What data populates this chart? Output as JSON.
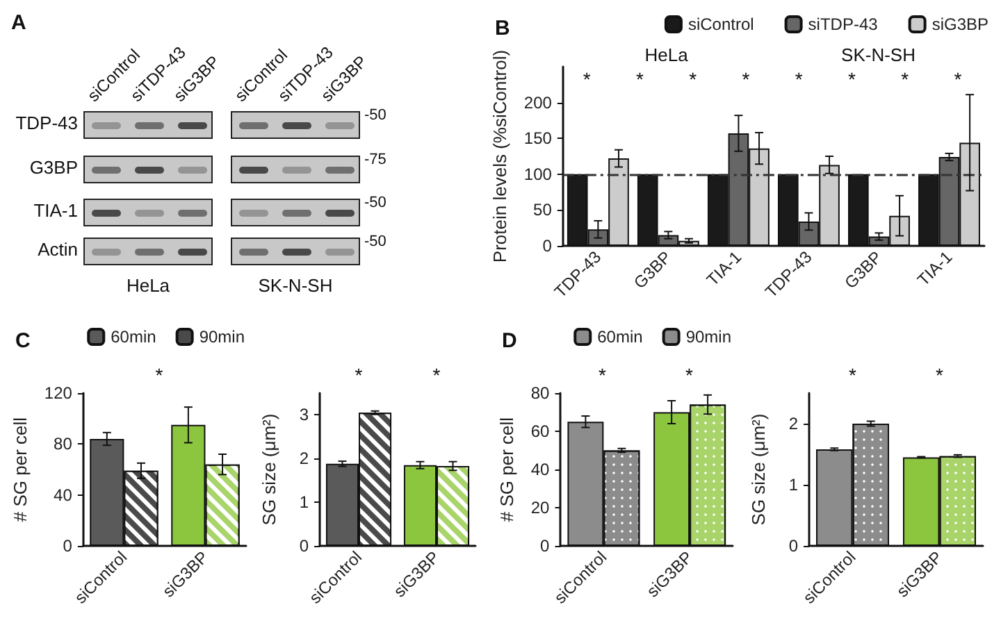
{
  "chart_data": [
    {
      "type": "other",
      "title": "A",
      "categories": [
        "siControl",
        "siTDP-43",
        "siG3BP",
        "siControl",
        "siTDP-43",
        "siG3BP"
      ],
      "y_categories": [
        "TDP-43",
        "G3BP",
        "TIA-1",
        "Actin"
      ],
      "y2_categories": [
        "-50",
        "-75",
        "-50",
        "-50"
      ],
      "annotations": [
        "HeLa",
        "SK-N-SH"
      ]
    },
    {
      "type": "bar",
      "title": "B",
      "ylabel": "Protein levels (%siControl)",
      "categories": [
        "TDP-43",
        "G3BP",
        "TIA-1",
        "TDP-43",
        "G3BP",
        "TIA-1"
      ],
      "series": [
        {
          "name": "siControl",
          "color": "#1a1a1a",
          "values": [
            100,
            100,
            100,
            100,
            100,
            100
          ]
        },
        {
          "name": "siTDP-43",
          "color": "#666666",
          "values": [
            23,
            15,
            157,
            34,
            13,
            124
          ],
          "errors": [
            12,
            5,
            25,
            12,
            5,
            5
          ]
        },
        {
          "name": "siG3BP",
          "color": "#cccccc",
          "values": [
            122,
            7,
            136,
            113,
            42,
            144
          ],
          "errors": [
            12,
            3,
            22,
            12,
            28,
            67
          ]
        }
      ],
      "ylim": [
        0,
        250
      ],
      "yticks": [
        0,
        50,
        100,
        150,
        200
      ],
      "legend": "top right",
      "ref_lines": [
        {
          "axis": "y",
          "value": 100,
          "line_style": "dashed",
          "color": "#333333"
        }
      ],
      "annotations": [
        "HeLa",
        "SK-N-SH",
        "*",
        "*",
        "*",
        "*",
        "*",
        "*",
        "*",
        "*"
      ]
    },
    {
      "type": "bar",
      "title": "C",
      "ylabel": "# SG per cell",
      "categories": [
        "siControl",
        "siG3BP"
      ],
      "series": [
        {
          "name": "60min",
          "colors": [
            "#5a5a5a",
            "#8cc63f"
          ],
          "values": [
            84,
            95
          ],
          "errors": [
            5,
            14
          ]
        },
        {
          "name": "90min",
          "colors": [
            "#4a4a4a",
            "#a8d46a"
          ],
          "values": [
            59,
            64
          ],
          "errors": [
            6,
            8
          ]
        }
      ],
      "ylim": [
        0,
        120
      ],
      "yticks": [
        0,
        40,
        80,
        120
      ],
      "legend": "top right",
      "annotations": [
        "*"
      ]
    },
    {
      "type": "bar",
      "ylabel": "SG size (μm²)",
      "categories": [
        "siControl",
        "siG3BP"
      ],
      "series": [
        {
          "colors": [
            "#5a5a5a",
            "#8cc63f"
          ],
          "values": [
            1.88,
            1.85
          ],
          "errors": [
            0.06,
            0.08
          ]
        },
        {
          "colors": [
            "#4a4a4a",
            "#a8d46a"
          ],
          "values": [
            3.05,
            1.83
          ],
          "errors": [
            0.04,
            0.1
          ]
        }
      ],
      "ylim": [
        0,
        3.5
      ],
      "yticks": [
        0,
        1,
        2,
        3
      ],
      "annotations": [
        "*",
        "*"
      ]
    },
    {
      "type": "bar",
      "title": "D",
      "ylabel": "# SG per cell",
      "categories": [
        "siControl",
        "siG3BP"
      ],
      "series": [
        {
          "name": "60min",
          "colors": [
            "#8c8c8c",
            "#8cc63f"
          ],
          "values": [
            65,
            70
          ],
          "errors": [
            3,
            6
          ]
        },
        {
          "name": "90min",
          "colors": [
            "#8c8c8c",
            "#a8d46a"
          ],
          "values": [
            50,
            74
          ],
          "errors": [
            1,
            5
          ]
        }
      ],
      "ylim": [
        0,
        80
      ],
      "yticks": [
        0,
        20,
        40,
        60,
        80
      ],
      "legend": "top right",
      "annotations": [
        "*",
        "*"
      ]
    },
    {
      "type": "bar",
      "ylabel": "SG size (μm²)",
      "categories": [
        "siControl",
        "siG3BP"
      ],
      "series": [
        {
          "colors": [
            "#8c8c8c",
            "#8cc63f"
          ],
          "values": [
            1.58,
            1.45
          ],
          "errors": [
            0.02,
            0.01
          ]
        },
        {
          "colors": [
            "#8c8c8c",
            "#a8d46a"
          ],
          "values": [
            2.0,
            1.47
          ],
          "errors": [
            0.04,
            0.02
          ]
        }
      ],
      "ylim": [
        0,
        2.5
      ],
      "yticks": [
        0,
        1,
        2
      ],
      "annotations": [
        "*",
        "*"
      ]
    }
  ]
}
